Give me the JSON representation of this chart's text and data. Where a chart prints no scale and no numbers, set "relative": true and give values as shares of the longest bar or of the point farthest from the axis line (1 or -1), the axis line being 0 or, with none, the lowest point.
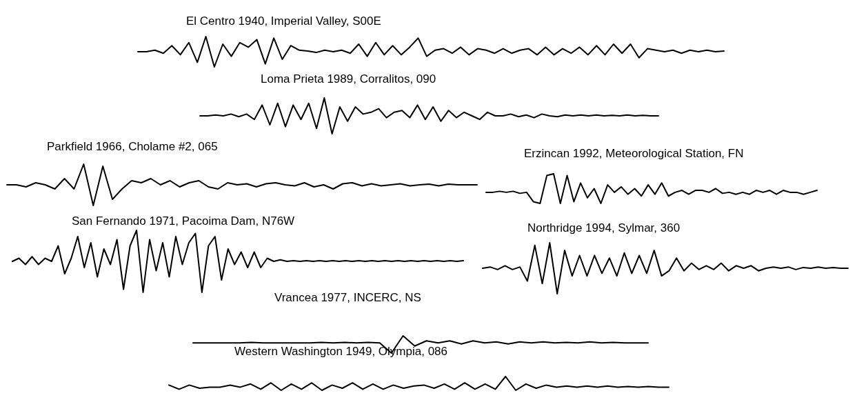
{
  "chart_data": [
    {
      "type": "line",
      "title": "El Centro 1940, Imperial Valley, S00E",
      "relative": true,
      "color": "#000000",
      "categories": [
        null,
        null,
        null,
        null,
        null,
        null,
        null,
        null,
        null,
        null,
        null,
        null,
        null,
        null,
        null,
        null,
        null,
        null,
        null,
        null,
        null,
        null,
        null,
        null,
        null,
        null,
        null,
        null,
        null,
        null,
        null,
        null,
        null,
        null,
        null,
        null,
        null,
        null,
        null,
        null,
        null,
        null,
        null,
        null,
        null,
        null,
        null,
        null,
        null,
        null,
        null,
        null,
        null,
        null,
        null,
        null,
        null,
        null,
        null,
        null,
        null,
        null,
        null,
        null,
        null,
        null,
        null,
        null,
        null,
        null
      ],
      "values": [
        0.5,
        0.5,
        0.55,
        0.45,
        0.7,
        0.4,
        0.8,
        0.15,
        1,
        0,
        0.75,
        0.35,
        0.8,
        0.65,
        0.9,
        0.1,
        0.95,
        0.25,
        0.7,
        0.55,
        0.525,
        0.475,
        0.55,
        0.5,
        0.55,
        0.45,
        0.75,
        0.35,
        0.8,
        0.4,
        0.7,
        0.4,
        0.65,
        0.95,
        0.35,
        0.55,
        0.6,
        0.45,
        0.65,
        0.4,
        0.6,
        0.55,
        0.45,
        0.6,
        0.45,
        0.55,
        0.6,
        0.4,
        0.65,
        0.4,
        0.6,
        0.45,
        0.65,
        0.4,
        0.7,
        0.4,
        0.75,
        0.45,
        0.75,
        0.3,
        0.6,
        0.55,
        0.5,
        0.55,
        0.45,
        0.55,
        0.5,
        0.55,
        0.5,
        0.525
      ]
    },
    {
      "type": "line",
      "title": "Loma Prieta 1989, Corralitos, 090",
      "relative": true,
      "color": "#000000",
      "categories": [
        null,
        null,
        null,
        null,
        null,
        null,
        null,
        null,
        null,
        null,
        null,
        null,
        null,
        null,
        null,
        null,
        null,
        null,
        null,
        null,
        null,
        null,
        null,
        null,
        null,
        null,
        null,
        null,
        null,
        null,
        null,
        null,
        null,
        null,
        null,
        null,
        null,
        null,
        null,
        null,
        null,
        null,
        null,
        null,
        null,
        null,
        null,
        null,
        null,
        null,
        null,
        null,
        null,
        null,
        null,
        null,
        null,
        null,
        null,
        null
      ],
      "values": [
        0.5,
        0.5,
        0.525,
        0.5,
        0.55,
        0.475,
        0.55,
        0.4,
        0.8,
        0.25,
        0.85,
        0.2,
        0.8,
        0.4,
        0.85,
        0.15,
        1,
        0,
        0.75,
        0.35,
        0.75,
        0.55,
        0.6,
        0.7,
        0.45,
        0.6,
        0.65,
        0.45,
        0.8,
        0.4,
        0.75,
        0.35,
        0.65,
        0.45,
        0.6,
        0.5,
        0.4,
        0.6,
        0.5,
        0.5,
        0.55,
        0.475,
        0.525,
        0.45,
        0.55,
        0.5,
        0.475,
        0.525,
        0.5,
        0.525,
        0.5,
        0.525,
        0.5,
        0.515,
        0.5,
        0.525,
        0.5,
        0.515,
        0.5,
        0.5
      ]
    },
    {
      "type": "line",
      "title": "Parkfield 1966, Cholame #2, 065",
      "relative": true,
      "color": "#000000",
      "categories": [
        null,
        null,
        null,
        null,
        null,
        null,
        null,
        null,
        null,
        null,
        null,
        null,
        null,
        null,
        null,
        null,
        null,
        null,
        null,
        null,
        null,
        null,
        null,
        null,
        null,
        null,
        null,
        null,
        null,
        null,
        null,
        null,
        null,
        null,
        null,
        null,
        null,
        null,
        null,
        null,
        null,
        null,
        null,
        null,
        null,
        null,
        null,
        null,
        null,
        null
      ],
      "values": [
        0.5,
        0.5,
        0.45,
        0.55,
        0.5,
        0.4,
        0.65,
        0.4,
        1,
        0,
        0.95,
        0.15,
        0.4,
        0.6,
        0.55,
        0.65,
        0.5,
        0.6,
        0.45,
        0.55,
        0.6,
        0.45,
        0.4,
        0.55,
        0.5,
        0.525,
        0.45,
        0.525,
        0.55,
        0.5,
        0.475,
        0.55,
        0.45,
        0.5,
        0.4,
        0.525,
        0.55,
        0.475,
        0.525,
        0.475,
        0.5,
        0.525,
        0.475,
        0.5,
        0.515,
        0.475,
        0.515,
        0.5,
        0.5,
        0.5
      ]
    },
    {
      "type": "line",
      "title": "Erzincan 1992, Meteorological Station, FN",
      "relative": true,
      "color": "#000000",
      "categories": [
        null,
        null,
        null,
        null,
        null,
        null,
        null,
        null,
        null,
        null,
        null,
        null,
        null,
        null,
        null,
        null,
        null,
        null,
        null,
        null,
        null,
        null,
        null,
        null,
        null,
        null,
        null,
        null,
        null,
        null,
        null,
        null,
        null,
        null,
        null,
        null,
        null,
        null,
        null,
        null,
        null,
        null,
        null,
        null,
        null,
        null,
        null,
        null,
        null,
        null
      ],
      "values": [
        0.375,
        0.375,
        0.41,
        0.375,
        0.41,
        0.34,
        0.375,
        0.06,
        0,
        0.94,
        1,
        0,
        0.94,
        0.06,
        0.69,
        0.19,
        0.5,
        0,
        0.625,
        0.375,
        0.56,
        0.31,
        0.5,
        0.25,
        0.625,
        0.31,
        0.69,
        0.25,
        0.375,
        0.44,
        0.31,
        0.44,
        0.44,
        0.375,
        0.5,
        0.34,
        0.375,
        0.31,
        0.375,
        0.31,
        0.44,
        0.375,
        0.44,
        0.31,
        0.44,
        0.375,
        0.375,
        0.31,
        0.375,
        0.44
      ]
    },
    {
      "type": "line",
      "title": "San Fernando 1971, Pacoima Dam, N76W",
      "relative": true,
      "color": "#000000",
      "categories": [
        null,
        null,
        null,
        null,
        null,
        null,
        null,
        null,
        null,
        null,
        null,
        null,
        null,
        null,
        null,
        null,
        null,
        null,
        null,
        null,
        null,
        null,
        null,
        null,
        null,
        null,
        null,
        null,
        null,
        null,
        null,
        null,
        null,
        null,
        null,
        null,
        null,
        null,
        null,
        null,
        null,
        null,
        null,
        null,
        null,
        null,
        null,
        null,
        null,
        null,
        null,
        null,
        null,
        null,
        null,
        null,
        null,
        null,
        null,
        null,
        null,
        null,
        null,
        null,
        null,
        null,
        null,
        null,
        null,
        null
      ],
      "values": [
        0.5,
        0.55,
        0.45,
        0.575,
        0.45,
        0.55,
        0.5,
        0.75,
        0.3,
        0.55,
        0.9,
        0.4,
        0.8,
        0.25,
        0.7,
        0.45,
        0.85,
        0.05,
        0.75,
        1,
        0,
        0.85,
        0.35,
        0.8,
        0.25,
        0.9,
        0.45,
        0.8,
        0.95,
        0,
        0.75,
        0.9,
        0.2,
        0.7,
        0.45,
        0.65,
        0.4,
        0.65,
        0.4,
        0.55,
        0.5,
        0.525,
        0.5,
        0.51,
        0.5,
        0.51,
        0.5,
        0.51,
        0.5,
        0.51,
        0.5,
        0.51,
        0.5,
        0.51,
        0.5,
        0.51,
        0.5,
        0.51,
        0.5,
        0.51,
        0.5,
        0.51,
        0.5,
        0.51,
        0.5,
        0.51,
        0.5,
        0.51,
        0.5,
        0.51
      ]
    },
    {
      "type": "line",
      "title": "Northridge 1994, Sylmar, 360",
      "relative": true,
      "color": "#000000",
      "categories": [
        null,
        null,
        null,
        null,
        null,
        null,
        null,
        null,
        null,
        null,
        null,
        null,
        null,
        null,
        null,
        null,
        null,
        null,
        null,
        null,
        null,
        null,
        null,
        null,
        null,
        null,
        null,
        null,
        null,
        null,
        null,
        null,
        null,
        null,
        null,
        null,
        null,
        null,
        null,
        null,
        null,
        null,
        null,
        null,
        null,
        null,
        null,
        null,
        null,
        null
      ],
      "values": [
        0.5,
        0.525,
        0.475,
        0.55,
        0.475,
        0.525,
        0.25,
        0.95,
        0.2,
        1,
        0,
        0.85,
        0.35,
        0.75,
        0.35,
        0.75,
        0.4,
        0.7,
        0.35,
        0.8,
        0.4,
        0.75,
        0.4,
        0.85,
        0.35,
        0.45,
        0.7,
        0.45,
        0.6,
        0.475,
        0.55,
        0.475,
        0.6,
        0.45,
        0.55,
        0.5,
        0.55,
        0.45,
        0.5,
        0.525,
        0.5,
        0.525,
        0.475,
        0.515,
        0.5,
        0.525,
        0.5,
        0.515,
        0.5,
        0.5
      ]
    },
    {
      "type": "line",
      "title": "Vrancea 1977, INCERC, NS",
      "relative": true,
      "color": "#000000",
      "categories": [
        null,
        null,
        null,
        null,
        null,
        null,
        null,
        null,
        null,
        null,
        null,
        null,
        null,
        null,
        null,
        null,
        null,
        null,
        null,
        null,
        null,
        null,
        null,
        null,
        null,
        null,
        null,
        null,
        null,
        null,
        null,
        null,
        null,
        null,
        null,
        null,
        null,
        null,
        null,
        null
      ],
      "values": [
        0.59,
        0.59,
        0.59,
        0.59,
        0.59,
        0.62,
        0.59,
        0.59,
        0.59,
        0.59,
        0.59,
        0.62,
        0.59,
        0.62,
        0.59,
        0.62,
        0.59,
        0,
        1,
        0.41,
        0.71,
        0.59,
        0.71,
        0.53,
        0.71,
        0.59,
        0.65,
        0.53,
        0.65,
        0.59,
        0.65,
        0.59,
        0.62,
        0.59,
        0.65,
        0.59,
        0.62,
        0.59,
        0.59,
        0.59
      ]
    },
    {
      "type": "line",
      "title": "Western Washington 1949, Olympia, 086",
      "relative": true,
      "color": "#000000",
      "categories": [
        null,
        null,
        null,
        null,
        null,
        null,
        null,
        null,
        null,
        null,
        null,
        null,
        null,
        null,
        null,
        null,
        null,
        null,
        null,
        null,
        null,
        null,
        null,
        null,
        null,
        null,
        null,
        null,
        null,
        null,
        null,
        null,
        null,
        null,
        null,
        null,
        null,
        null,
        null,
        null,
        null,
        null,
        null,
        null,
        null,
        null,
        null,
        null,
        null,
        null
      ],
      "values": [
        0.38,
        0.08,
        0.38,
        0.15,
        0.23,
        0.23,
        0.38,
        0.23,
        0.46,
        0.08,
        0.54,
        0,
        0.46,
        0.08,
        0.54,
        0,
        0.38,
        0.15,
        0.54,
        0.08,
        0.46,
        0.08,
        0.38,
        0.15,
        0.31,
        0.38,
        0.15,
        0.46,
        0.08,
        0.54,
        0.08,
        0.46,
        0.08,
        1,
        0,
        0.46,
        0.15,
        0.38,
        0.23,
        0.31,
        0.23,
        0.31,
        0.23,
        0.31,
        0.23,
        0.27,
        0.23,
        0.27,
        0.23,
        0.23
      ]
    }
  ]
}
